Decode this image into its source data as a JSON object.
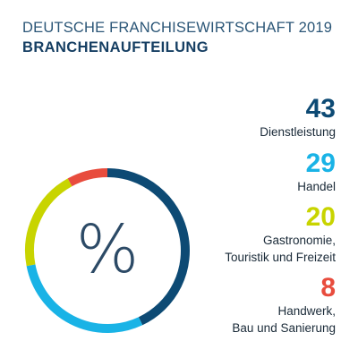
{
  "header": {
    "title": "DEUTSCHE FRANCHISEWIRTSCHAFT 2019",
    "subtitle": "BRANCHENAUFTEILUNG"
  },
  "center_symbol": "%",
  "colors": {
    "dienstleistung": "#0d4a74",
    "handel": "#19b3e6",
    "gastronomie": "#c8d400",
    "handwerk": "#e84c3d",
    "title": "#2b5677"
  },
  "chart_data": {
    "type": "pie",
    "title": "BRANCHENAUFTEILUNG",
    "unit": "%",
    "categories": [
      "Dienstleistung",
      "Handel",
      "Gastronomie, Touristik und Freizeit",
      "Handwerk, Bau und Sanierung"
    ],
    "values": [
      43,
      29,
      20,
      8
    ],
    "colors": [
      "#0d4a74",
      "#19b3e6",
      "#c8d400",
      "#e84c3d"
    ],
    "legend_position": "right",
    "legend": [
      {
        "value": "43",
        "label_lines": [
          "Dienstleistung"
        ]
      },
      {
        "value": "29",
        "label_lines": [
          "Handel"
        ]
      },
      {
        "value": "20",
        "label_lines": [
          "Gastronomie,",
          "Touristik und Freizeit"
        ]
      },
      {
        "value": "8",
        "label_lines": [
          "Handwerk,",
          "Bau und Sanierung"
        ]
      }
    ]
  }
}
